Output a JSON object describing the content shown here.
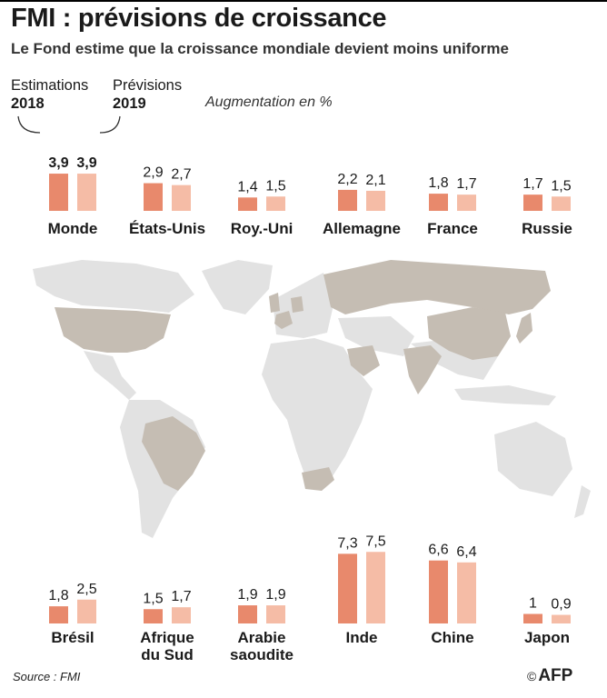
{
  "title": "FMI : prévisions de croissance",
  "subtitle": "Le Fond estime que la croissance mondiale devient moins uniforme",
  "legend": {
    "estimations_label": "Estimations",
    "estimations_year": "2018",
    "previsions_label": "Prévisions",
    "previsions_year": "2019"
  },
  "unit_label": "Augmentation en %",
  "source": "Source : FMI",
  "logo": "AFP",
  "colors": {
    "estimation": "#e8896c",
    "prevision": "#f5bca6",
    "land_highlight": "#c5bdb3",
    "land_other": "#e2e2e2"
  },
  "chart_data": {
    "type": "bar",
    "series": [
      {
        "name": "Estimations 2018"
      },
      {
        "name": "Prévisions 2019"
      }
    ],
    "groups": [
      {
        "category": "Monde",
        "values": [
          3.9,
          3.9
        ],
        "labels": [
          "3,9",
          "3,9"
        ]
      },
      {
        "category": "États-Unis",
        "values": [
          2.9,
          2.7
        ],
        "labels": [
          "2,9",
          "2,7"
        ]
      },
      {
        "category": "Roy.-Uni",
        "values": [
          1.4,
          1.5
        ],
        "labels": [
          "1,4",
          "1,5"
        ]
      },
      {
        "category": "Allemagne",
        "values": [
          2.2,
          2.1
        ],
        "labels": [
          "2,2",
          "2,1"
        ]
      },
      {
        "category": "France",
        "values": [
          1.8,
          1.7
        ],
        "labels": [
          "1,8",
          "1,7"
        ]
      },
      {
        "category": "Russie",
        "values": [
          1.7,
          1.5
        ],
        "labels": [
          "1,7",
          "1,5"
        ]
      },
      {
        "category": "Brésil",
        "values": [
          1.8,
          2.5
        ],
        "labels": [
          "1,8",
          "2,5"
        ]
      },
      {
        "category": "Afrique du Sud",
        "values": [
          1.5,
          1.7
        ],
        "labels": [
          "1,5",
          "1,7"
        ]
      },
      {
        "category": "Arabie saoudite",
        "values": [
          1.9,
          1.9
        ],
        "labels": [
          "1,9",
          "1,9"
        ]
      },
      {
        "category": "Inde",
        "values": [
          7.3,
          7.5
        ],
        "labels": [
          "7,3",
          "7,5"
        ]
      },
      {
        "category": "Chine",
        "values": [
          6.6,
          6.4
        ],
        "labels": [
          "6,6",
          "6,4"
        ]
      },
      {
        "category": "Japon",
        "values": [
          1.0,
          0.9
        ],
        "labels": [
          "1",
          "0,9"
        ]
      }
    ]
  }
}
